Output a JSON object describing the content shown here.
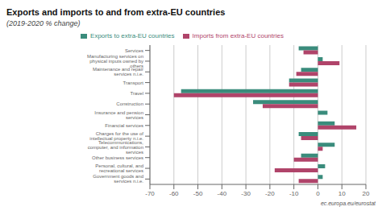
{
  "chart_data": {
    "type": "bar",
    "orientation": "horizontal",
    "title": "Exports and imports to and from extra-EU countries",
    "subtitle": "(2019-2020 % change)",
    "annotations": [
      "ec.europa.eu/eurostat"
    ],
    "categories": [
      "Government goods and services n.i.e.",
      "Personal, cultural, and recreational services",
      "Other business services",
      "Telecommunications, computer, and information services",
      "Charges for the use of intellectual property n.i.e.",
      "Financial services",
      "Insurance and pension services",
      "Construction",
      "Travel",
      "Transport",
      "Maintenance and repair services n.i.e.",
      "Manufacturing services on physical inputs owned by others",
      "Services"
    ],
    "series": [
      {
        "name": "Exports to extra-EU countries",
        "color": "#3a8c7c",
        "values": [
          2,
          3,
          -7,
          7,
          -8,
          7,
          4,
          -27,
          -57,
          -12,
          -7,
          2,
          -8
        ]
      },
      {
        "name": "Imports from extra-EU countries",
        "color": "#b0446a",
        "values": [
          -8,
          -18,
          -10,
          2,
          -7,
          16,
          0,
          -23,
          -60,
          -12,
          -9,
          9,
          -6
        ]
      }
    ],
    "xlim": [
      -70,
      20
    ],
    "xticks": [
      -70,
      -60,
      -50,
      -40,
      -30,
      -20,
      -10,
      0,
      10,
      20
    ],
    "grid": true,
    "legend": "top"
  }
}
